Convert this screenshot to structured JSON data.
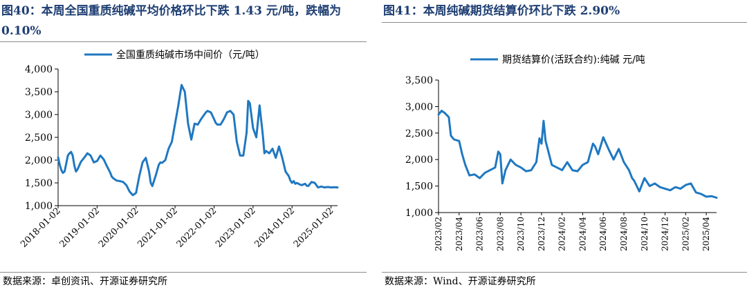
{
  "charts": [
    {
      "figure_title": "图40：本周全国重质纯碱平均价格环比下跌 1.43 元/吨，跌幅为 0.10%",
      "source": "数据来源：卓创资讯、开源证券研究所",
      "line_color": "#1f78c1",
      "chart_data": {
        "type": "line",
        "title": "",
        "xlabel": "",
        "ylabel": "",
        "ylim": [
          1000,
          4000
        ],
        "yticks": [
          1000,
          1500,
          2000,
          2500,
          3000,
          3500,
          4000
        ],
        "ytick_labels": [
          "1,000",
          "1,500",
          "2,000",
          "2,500",
          "3,000",
          "3,500",
          "4,000"
        ],
        "xlim": [
          0,
          86
        ],
        "xticks": [
          0,
          12,
          24,
          36,
          48,
          60,
          72,
          84
        ],
        "xtick_labels": [
          "2018-01-02",
          "2019-01-02",
          "2020-01-02",
          "2021-01-02",
          "2022-01-02",
          "2023-01-02",
          "2024-01-02",
          "2025-01-02"
        ],
        "legend": "top",
        "series": [
          {
            "name": "全国重质纯碱市场中间价（元/吨）",
            "x": [
              0,
              0.5,
              1,
              1.5,
              2,
              3,
              3.5,
              4,
              4.5,
              5,
              5.5,
              6,
              7,
              8,
              9,
              10,
              11,
              12,
              13,
              14,
              15,
              16,
              16.5,
              17,
              18,
              19,
              20,
              21,
              22,
              23,
              24,
              25,
              26,
              27,
              28,
              28.5,
              29,
              30,
              31,
              31.5,
              32,
              33,
              34,
              35,
              36,
              37,
              38,
              39,
              40,
              41,
              42,
              43,
              44,
              44.5,
              45,
              45.5,
              46,
              47,
              48,
              48.5,
              49,
              50,
              51,
              52,
              53,
              54,
              55,
              56,
              57,
              58,
              58.5,
              59,
              60,
              61,
              62,
              63,
              63.5,
              64,
              65,
              66,
              67,
              68,
              69,
              70,
              71,
              71.5,
              72,
              72.5,
              73,
              73.5,
              74,
              74.5,
              75,
              76,
              76.5,
              77,
              78,
              79,
              80,
              81,
              82,
              83,
              84,
              85,
              86
            ],
            "values": [
              2060,
              1900,
              1780,
              1720,
              1750,
              2100,
              2150,
              2180,
              2100,
              1880,
              1750,
              1800,
              1960,
              2050,
              2150,
              2100,
              1950,
              1980,
              2100,
              2020,
              1870,
              1730,
              1640,
              1600,
              1550,
              1540,
              1520,
              1450,
              1310,
              1230,
              1280,
              1650,
              1950,
              2050,
              1750,
              1500,
              1430,
              1650,
              1900,
              1950,
              1940,
              2000,
              2250,
              2400,
              2800,
              3200,
              3650,
              3500,
              2800,
              2450,
              2800,
              2780,
              2900,
              2950,
              3000,
              3050,
              3080,
              3050,
              2900,
              2820,
              2780,
              2780,
              2900,
              3050,
              3080,
              3000,
              2400,
              2100,
              2100,
              2600,
              3300,
              3250,
              2700,
              2500,
              3200,
              2550,
              2150,
              2200,
              2150,
              2250,
              2050,
              2300,
              2050,
              1750,
              1650,
              1550,
              1500,
              1540,
              1480,
              1500,
              1480,
              1460,
              1450,
              1480,
              1440,
              1430,
              1520,
              1500,
              1400,
              1420,
              1400,
              1410,
              1400,
              1405,
              1400
            ]
          }
        ]
      }
    },
    {
      "figure_title": "图41：本周纯碱期货结算价环比下跌 2.90%",
      "source": "数据来源：Wind、开源证券研究所",
      "line_color": "#1f78c1",
      "chart_data": {
        "type": "line",
        "title": "",
        "xlabel": "",
        "ylabel": "",
        "ylim": [
          1000,
          3500
        ],
        "yticks": [
          1000,
          1500,
          2000,
          2500,
          3000,
          3500
        ],
        "ytick_labels": [
          "1,000",
          "1,500",
          "2,000",
          "2,500",
          "3,000",
          "3,500"
        ],
        "xlim": [
          0,
          27
        ],
        "xticks": [
          0,
          2,
          4,
          6,
          8,
          10,
          12,
          14,
          16,
          18,
          20,
          22,
          24,
          26
        ],
        "xtick_labels": [
          "2023/02",
          "2023/04",
          "2023/06",
          "2023/08",
          "2023/10",
          "2023/12",
          "2024/02",
          "2024/04",
          "2024/06",
          "2024/08",
          "2024/10",
          "2024/12",
          "2025/02",
          "2025/04"
        ],
        "legend": "top",
        "series": [
          {
            "name": "期货结算价(活跃合约):纯碱 元/吨",
            "x": [
              0,
              0.3,
              0.6,
              1,
              1.2,
              1.5,
              2,
              2.3,
              2.6,
              3,
              3.5,
              4,
              4.5,
              5,
              5.5,
              5.8,
              6,
              6.2,
              6.5,
              7,
              7.5,
              8,
              8.5,
              9,
              9.5,
              9.8,
              10,
              10.2,
              10.4,
              10.6,
              11,
              11.5,
              12,
              12.5,
              13,
              13.5,
              14,
              14.5,
              15,
              15.2,
              15.5,
              16,
              16.5,
              17,
              17.5,
              18,
              18.5,
              18.8,
              19,
              19.2,
              19.5,
              20,
              20.5,
              21,
              21.5,
              22,
              22.5,
              23,
              23.5,
              24,
              24.5,
              25,
              25.5,
              26,
              26.5,
              27
            ],
            "values": [
              2850,
              2920,
              2880,
              2800,
              2450,
              2380,
              2350,
              2100,
              1900,
              1700,
              1720,
              1650,
              1750,
              1800,
              1850,
              2150,
              2100,
              1550,
              1800,
              2000,
              1900,
              1850,
              1780,
              1800,
              1950,
              2400,
              2300,
              2730,
              2350,
              2200,
              1900,
              1850,
              1800,
              1950,
              1800,
              1780,
              1900,
              1950,
              2300,
              2250,
              2100,
              2420,
              2200,
              2000,
              2200,
              1950,
              1800,
              1650,
              1600,
              1520,
              1400,
              1650,
              1500,
              1550,
              1480,
              1450,
              1420,
              1480,
              1450,
              1520,
              1550,
              1380,
              1350,
              1300,
              1310,
              1280
            ]
          }
        ]
      }
    }
  ]
}
